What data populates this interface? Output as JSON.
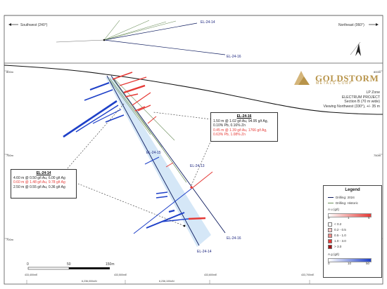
{
  "header": {
    "southwest_label": "Southwest (240°)",
    "northeast_label": "Northeast (060°)"
  },
  "logo": {
    "brand": "GOLDSTORM",
    "sub": "METALS CORP"
  },
  "section_info": {
    "zone": "LP Zone",
    "project": "ELECTRUM PROJECT",
    "section": "Section B (70 m wide)",
    "view": "Viewing Northwest (330°), +/- 35 m"
  },
  "drillholes": {
    "top_14": "EL-24-14",
    "top_16": "EL-24-16",
    "mid_15": "EL-24-15",
    "mid_13": "EL-24-13",
    "bot_16": "EL-24-16",
    "bot_14": "EL-24-14"
  },
  "elevations": {
    "left_top": "800m",
    "left_mid": "750m",
    "left_bot": "700m",
    "right_top": "800m",
    "right_mid": "750m",
    "right_bot": "700m"
  },
  "eastings": {
    "e1": "433,400mE",
    "e2": "433,500mE",
    "e3": "433,600mE",
    "e4": "433,700mE",
    "n1": "6,236,000mN",
    "n2": "6,236,100mN"
  },
  "scalebar": {
    "zero": "0",
    "mid": "50",
    "end": "150m"
  },
  "intercept_16": {
    "title": "EL-24-16",
    "line1": "1.50 m @ 1.02 g/t Au, 94.95 g/t Ag,",
    "line2": "0.10% Pb, 0.16% Zn",
    "line3": "0.45 m @ 1.39 g/t Au, 1766 g/t Ag,",
    "line4": "0.63% Pb, 1.08% Zn"
  },
  "intercept_14": {
    "title": "EL-24-14",
    "line1": "4.60 m @ 0.50 g/t Au, 6.00 g/t Ag",
    "line2": "0.60 m @ 1.48 g/t Au, 9.78 g/t Ag",
    "line3": "2.50 m @ 0.55 g/t Au, 0.36 g/t Ag"
  },
  "legend": {
    "title": "Legend",
    "drill_2024": "Drilling: 2024",
    "drill_hist": "Drilling: Historic",
    "au_title": "A u (g/t)",
    "au_ticks": [
      "0",
      "1",
      "5"
    ],
    "au_items": [
      "< 0.2",
      "0.2 - 0.5",
      "0.5 - 1.0",
      "1.0 - 3.0",
      "> 3.0"
    ],
    "ag_title": "A g (g/t)",
    "ag_ticks": [
      "0",
      "10",
      "50"
    ]
  },
  "colors": {
    "frame": "#333333",
    "hole_2024": "#0d1b5e",
    "hole_historic": "#6b8e5a",
    "gold_bar": "#e53935",
    "silver_bar": "#1e40c8",
    "halo": "#b3d4f0",
    "brand": "#b8944a"
  }
}
